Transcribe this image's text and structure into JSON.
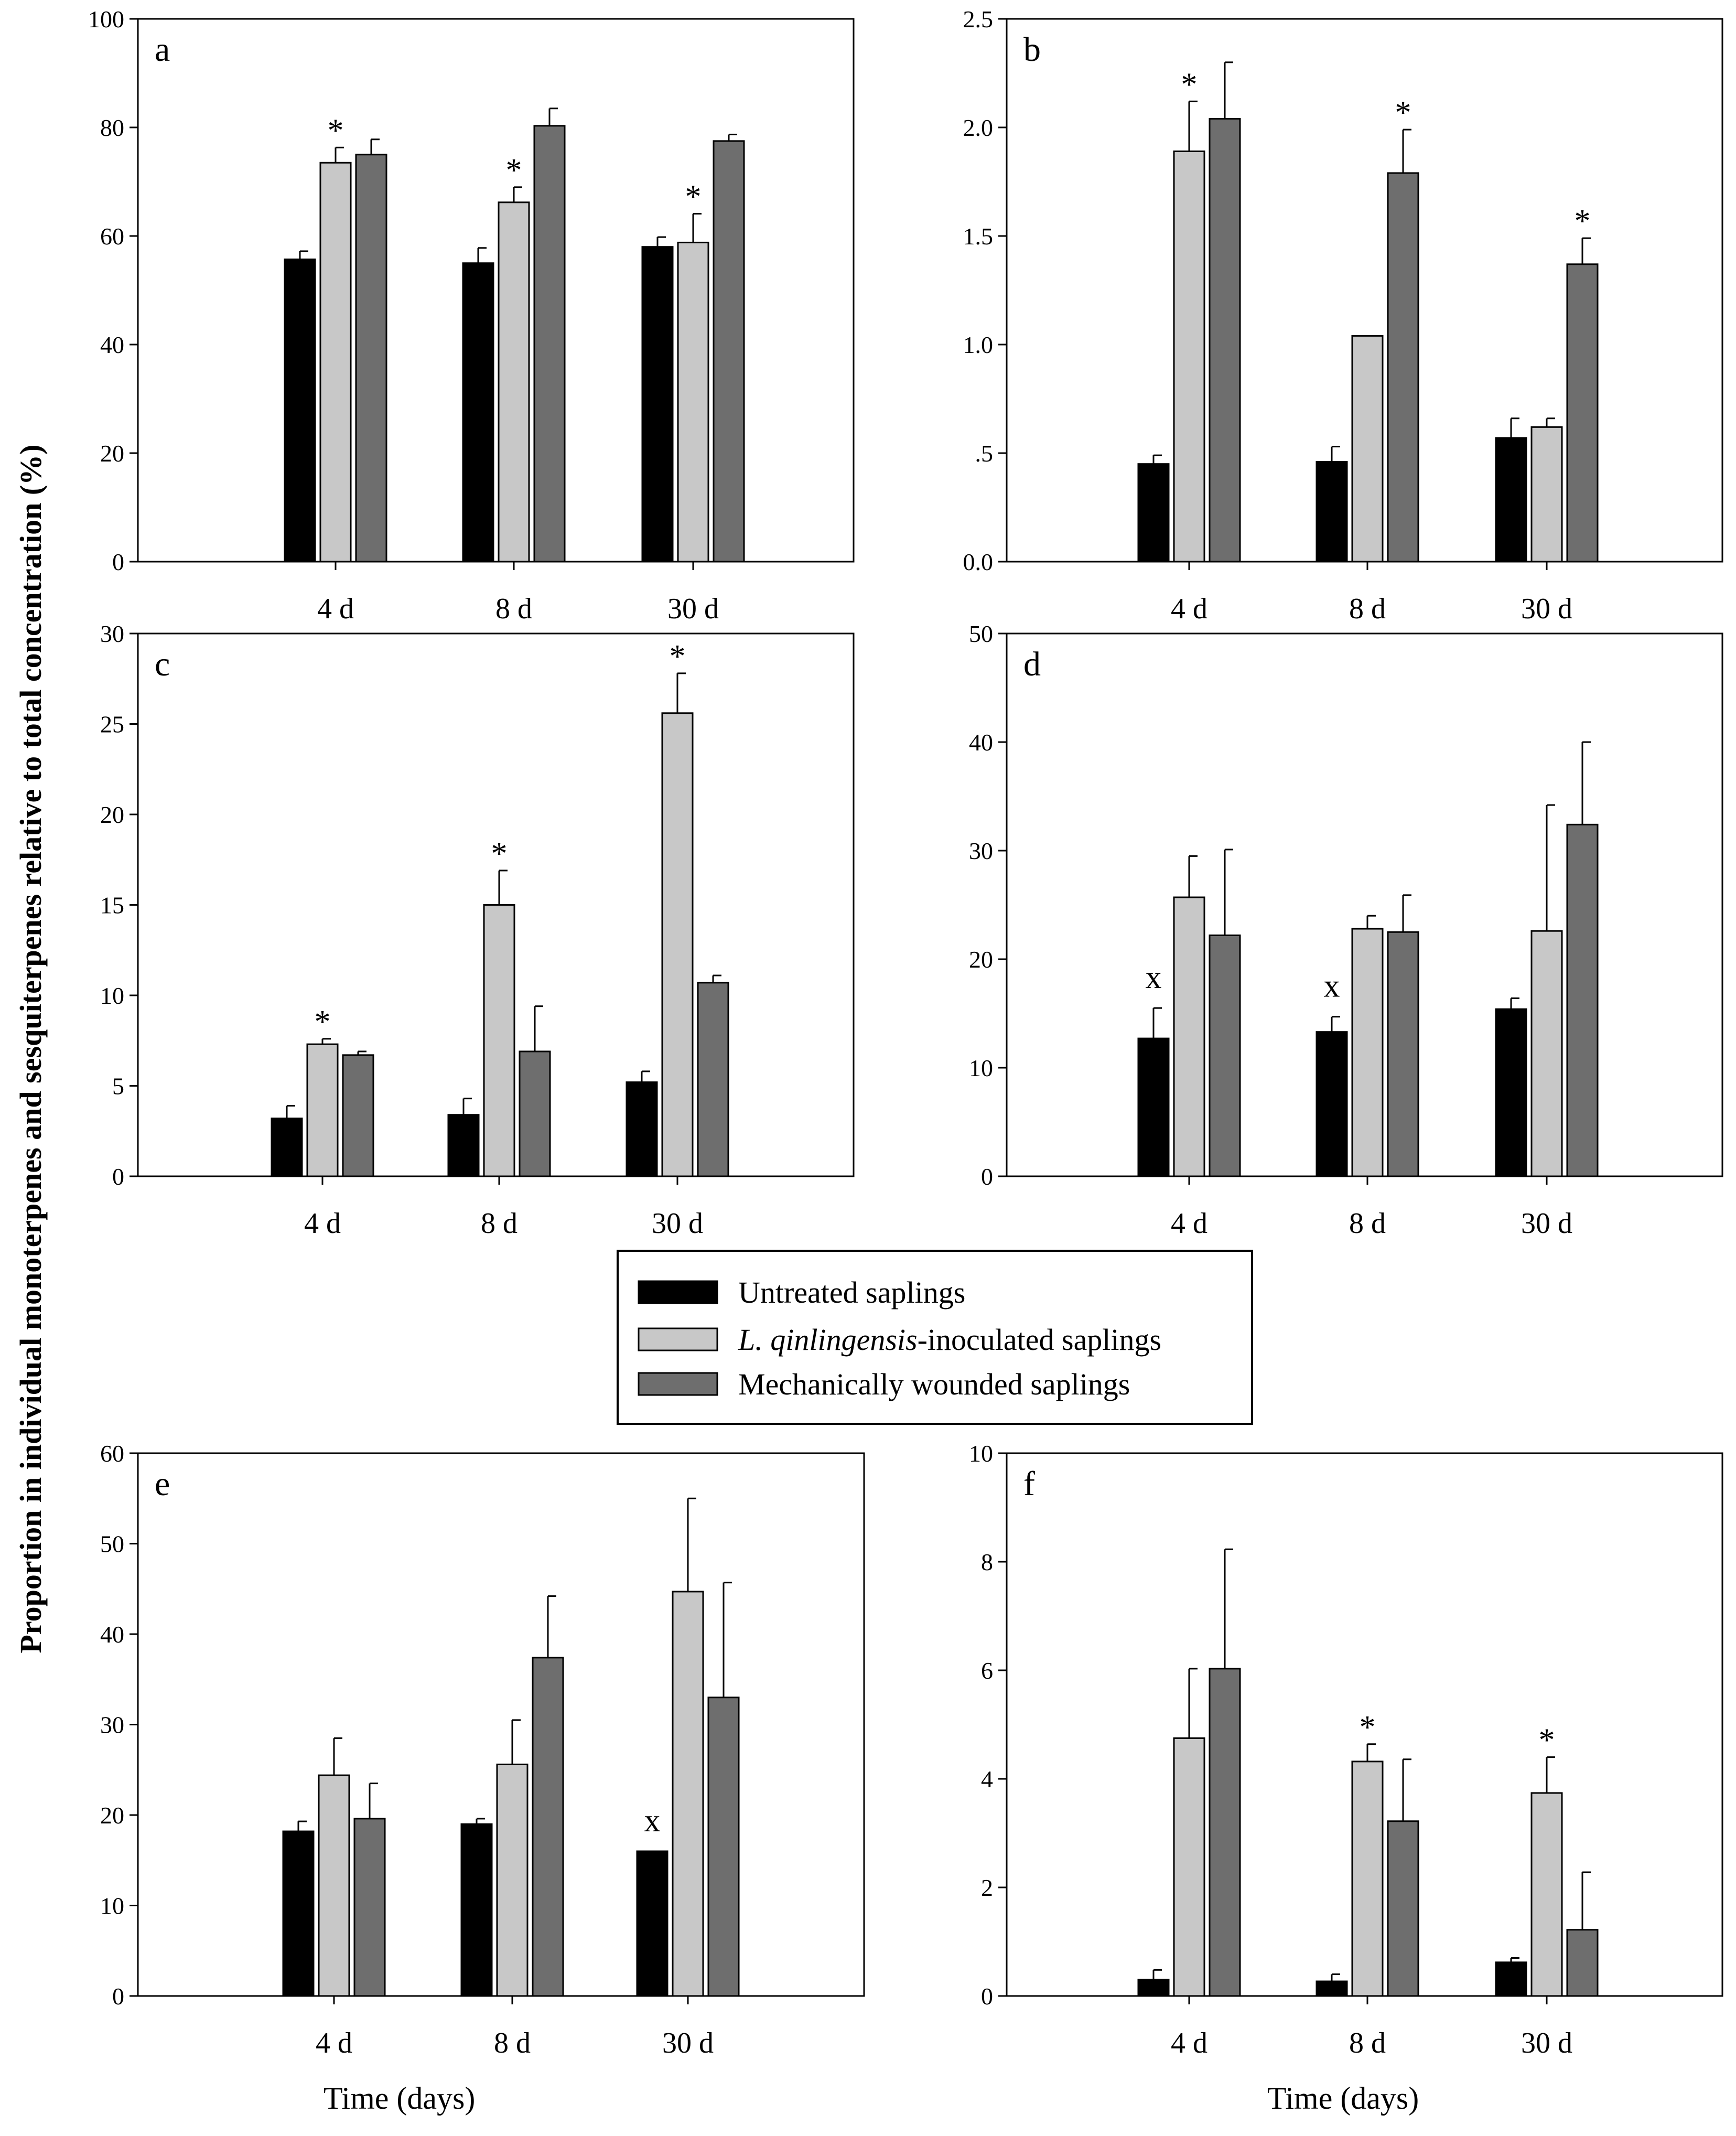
{
  "figure": {
    "ylabel": "Proportion in individual monoterpenes and sesquiterpenes relative to total concentration (%)",
    "xlabel": "Time (days)"
  },
  "legend": [
    {
      "label": "Untreated saplings",
      "color": "#000000"
    },
    {
      "label_italic": "L. qinlingensis",
      "label_rest": "-inoculated saplings",
      "color": "#c8c8c8"
    },
    {
      "label": "Mechanically wounded saplings",
      "color": "#6e6e6e"
    }
  ],
  "chart_data": [
    {
      "panel": "a",
      "type": "bar",
      "categories": [
        "4 d",
        "8 d",
        "30 d"
      ],
      "ylim": [
        0,
        100
      ],
      "ticks": [
        {
          "v": 0,
          "t": "0"
        },
        {
          "v": 20,
          "t": "20"
        },
        {
          "v": 40,
          "t": "40"
        },
        {
          "v": 60,
          "t": "60"
        },
        {
          "v": 80,
          "t": "80"
        },
        {
          "v": 100,
          "t": "100"
        }
      ],
      "series": [
        {
          "name": "Untreated saplings",
          "values": [
            55.7,
            55.0,
            58.0
          ],
          "errors": [
            1.5,
            2.8,
            1.8
          ]
        },
        {
          "name": "L. qinlingensis-inoculated saplings",
          "values": [
            73.5,
            66.2,
            58.8
          ],
          "errors": [
            2.8,
            2.8,
            5.3
          ]
        },
        {
          "name": "Mechanically wounded saplings",
          "values": [
            75.0,
            80.3,
            77.5
          ],
          "errors": [
            2.8,
            3.2,
            1.2
          ]
        }
      ],
      "marks": [
        {
          "cat": 1,
          "series": 1,
          "symbol": "*"
        },
        {
          "cat": 2,
          "series": 1,
          "symbol": "*"
        },
        {
          "cat": 3,
          "series": 1,
          "symbol": "*"
        }
      ],
      "xlabel": ""
    },
    {
      "panel": "b",
      "type": "bar",
      "categories": [
        "4 d",
        "8 d",
        "30 d"
      ],
      "ylim": [
        0,
        2.5
      ],
      "ticks": [
        {
          "v": 0,
          "t": "0.0"
        },
        {
          "v": 0.5,
          "t": ".5"
        },
        {
          "v": 1.0,
          "t": "1.0"
        },
        {
          "v": 1.5,
          "t": "1.5"
        },
        {
          "v": 2.0,
          "t": "2.0"
        },
        {
          "v": 2.5,
          "t": "2.5"
        }
      ],
      "series": [
        {
          "name": "Untreated saplings",
          "values": [
            0.45,
            0.46,
            0.57
          ],
          "errors": [
            0.04,
            0.07,
            0.09
          ]
        },
        {
          "name": "L. qinlingensis-inoculated saplings",
          "values": [
            1.89,
            1.04,
            0.62
          ],
          "errors": [
            0.23,
            0.0,
            0.04
          ]
        },
        {
          "name": "Mechanically wounded saplings",
          "values": [
            2.04,
            1.79,
            1.37
          ],
          "errors": [
            0.26,
            0.2,
            0.12
          ]
        }
      ],
      "marks": [
        {
          "cat": 1,
          "series": 1,
          "symbol": "*"
        },
        {
          "cat": 2,
          "series": 2,
          "symbol": "*"
        },
        {
          "cat": 3,
          "series": 2,
          "symbol": "*"
        }
      ],
      "xlabel": ""
    },
    {
      "panel": "c",
      "type": "bar",
      "categories": [
        "4 d",
        "8 d",
        "30 d"
      ],
      "ylim": [
        0,
        30
      ],
      "ticks": [
        {
          "v": 0,
          "t": "0"
        },
        {
          "v": 5,
          "t": "5"
        },
        {
          "v": 10,
          "t": "10"
        },
        {
          "v": 15,
          "t": "15"
        },
        {
          "v": 20,
          "t": "20"
        },
        {
          "v": 25,
          "t": "25"
        },
        {
          "v": 30,
          "t": "30"
        }
      ],
      "series": [
        {
          "name": "Untreated saplings",
          "values": [
            3.2,
            3.4,
            5.2
          ],
          "errors": [
            0.7,
            0.9,
            0.6
          ]
        },
        {
          "name": "L. qinlingensis-inoculated saplings",
          "values": [
            7.3,
            15.0,
            25.6
          ],
          "errors": [
            0.3,
            1.9,
            2.2
          ]
        },
        {
          "name": "Mechanically wounded saplings",
          "values": [
            6.7,
            6.9,
            10.7
          ],
          "errors": [
            0.2,
            2.5,
            0.4
          ]
        }
      ],
      "marks": [
        {
          "cat": 1,
          "series": 1,
          "symbol": "*"
        },
        {
          "cat": 2,
          "series": 1,
          "symbol": "*"
        },
        {
          "cat": 3,
          "series": 1,
          "symbol": "*"
        }
      ],
      "xlabel": ""
    },
    {
      "panel": "d",
      "type": "bar",
      "categories": [
        "4 d",
        "8 d",
        "30 d"
      ],
      "ylim": [
        0,
        50
      ],
      "ticks": [
        {
          "v": 0,
          "t": "0"
        },
        {
          "v": 10,
          "t": "10"
        },
        {
          "v": 20,
          "t": "20"
        },
        {
          "v": 30,
          "t": "30"
        },
        {
          "v": 40,
          "t": "40"
        },
        {
          "v": 50,
          "t": "50"
        }
      ],
      "series": [
        {
          "name": "Untreated saplings",
          "values": [
            12.7,
            13.3,
            15.4
          ],
          "errors": [
            2.8,
            1.4,
            1.0
          ]
        },
        {
          "name": "L. qinlingensis-inoculated saplings",
          "values": [
            25.7,
            22.8,
            22.6
          ],
          "errors": [
            3.8,
            1.2,
            11.6
          ]
        },
        {
          "name": "Mechanically wounded saplings",
          "values": [
            22.2,
            22.5,
            32.4
          ],
          "errors": [
            7.9,
            3.4,
            7.6
          ]
        }
      ],
      "marks": [
        {
          "cat": 1,
          "series": 0,
          "symbol": "x"
        },
        {
          "cat": 2,
          "series": 0,
          "symbol": "x"
        }
      ],
      "xlabel": ""
    },
    {
      "panel": "e",
      "type": "bar",
      "categories": [
        "4 d",
        "8 d",
        "30 d"
      ],
      "ylim": [
        0,
        60
      ],
      "ticks": [
        {
          "v": 0,
          "t": "0"
        },
        {
          "v": 10,
          "t": "10"
        },
        {
          "v": 20,
          "t": "20"
        },
        {
          "v": 30,
          "t": "30"
        },
        {
          "v": 40,
          "t": "40"
        },
        {
          "v": 50,
          "t": "50"
        },
        {
          "v": 60,
          "t": "60"
        }
      ],
      "series": [
        {
          "name": "Untreated saplings",
          "values": [
            18.2,
            19.0,
            16.0
          ],
          "errors": [
            1.1,
            0.6,
            0.0
          ]
        },
        {
          "name": "L. qinlingensis-inoculated saplings",
          "values": [
            24.4,
            25.6,
            44.7
          ],
          "errors": [
            4.1,
            4.9,
            10.3
          ]
        },
        {
          "name": "Mechanically wounded saplings",
          "values": [
            19.6,
            37.4,
            33.0
          ],
          "errors": [
            3.9,
            6.8,
            12.7
          ]
        }
      ],
      "marks": [
        {
          "cat": 3,
          "series": 0,
          "symbol": "x"
        }
      ],
      "xlabel": "Time (days)"
    },
    {
      "panel": "f",
      "type": "bar",
      "categories": [
        "4 d",
        "8 d",
        "30 d"
      ],
      "ylim": [
        0,
        10
      ],
      "ticks": [
        {
          "v": 0,
          "t": "0"
        },
        {
          "v": 2,
          "t": "2"
        },
        {
          "v": 4,
          "t": "4"
        },
        {
          "v": 6,
          "t": "6"
        },
        {
          "v": 8,
          "t": "8"
        },
        {
          "v": 10,
          "t": "10"
        }
      ],
      "series": [
        {
          "name": "Untreated saplings",
          "values": [
            0.3,
            0.27,
            0.62
          ],
          "errors": [
            0.18,
            0.13,
            0.08
          ]
        },
        {
          "name": "L. qinlingensis-inoculated saplings",
          "values": [
            4.75,
            4.32,
            3.74
          ],
          "errors": [
            1.28,
            0.32,
            0.66
          ]
        },
        {
          "name": "Mechanically wounded saplings",
          "values": [
            6.03,
            3.22,
            1.22
          ],
          "errors": [
            2.2,
            1.14,
            1.06
          ]
        }
      ],
      "marks": [
        {
          "cat": 2,
          "series": 1,
          "symbol": "*"
        },
        {
          "cat": 3,
          "series": 1,
          "symbol": "*"
        }
      ],
      "xlabel": "Time (days)"
    }
  ]
}
